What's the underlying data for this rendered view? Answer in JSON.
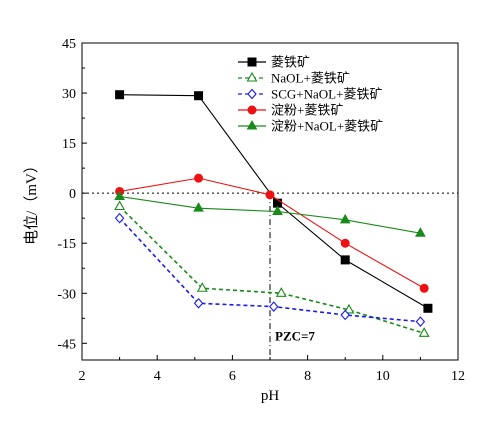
{
  "chart_data": {
    "type": "line",
    "xlabel": "pH",
    "ylabel": "电位/（mV）",
    "xlim": [
      2,
      12
    ],
    "ylim": [
      -50,
      45
    ],
    "xticks": [
      2,
      4,
      6,
      8,
      10,
      12
    ],
    "yticks": [
      -45,
      -30,
      -15,
      0,
      15,
      30,
      45
    ],
    "legend_position": "top-right",
    "reference_lines": [
      {
        "axis": "y",
        "value": 0,
        "style": "dotted"
      },
      {
        "axis": "x",
        "value": 7,
        "style": "dash-dot"
      }
    ],
    "annotation": {
      "text": "PZC=7",
      "x": 7,
      "y": -43
    },
    "series": [
      {
        "name": "菱铁矿",
        "color": "#000000",
        "marker": "square-filled",
        "dash": "solid",
        "x": [
          3.0,
          5.1,
          7.2,
          9.0,
          11.2
        ],
        "y": [
          29.5,
          29.2,
          -3.0,
          -20.0,
          -34.5
        ]
      },
      {
        "name": "NaOL+菱铁矿",
        "color": "#1a8a1a",
        "marker": "triangle-open",
        "dash": "dashed",
        "x": [
          3.0,
          5.2,
          7.3,
          9.1,
          11.1
        ],
        "y": [
          -4.0,
          -28.5,
          -30.0,
          -35.0,
          -42.0
        ]
      },
      {
        "name": "SCG+NaOL+菱铁矿",
        "color": "#1a1aee",
        "marker": "diamond-open",
        "dash": "dashed",
        "x": [
          3.0,
          5.1,
          7.1,
          9.0,
          11.0
        ],
        "y": [
          -7.5,
          -33.0,
          -34.0,
          -36.5,
          -38.5
        ]
      },
      {
        "name": "淀粉+菱铁矿",
        "color": "#ee1111",
        "marker": "circle-filled",
        "dash": "solid",
        "x": [
          3.0,
          5.1,
          7.0,
          9.0,
          11.1
        ],
        "y": [
          0.5,
          4.5,
          -0.5,
          -15.0,
          -28.5
        ]
      },
      {
        "name": "淀粉+NaOL+菱铁矿",
        "color": "#1a8a1a",
        "marker": "triangle-filled",
        "dash": "solid",
        "x": [
          3.0,
          5.1,
          7.2,
          9.0,
          11.0
        ],
        "y": [
          -1.0,
          -4.5,
          -5.5,
          -8.0,
          -12.0
        ]
      }
    ]
  }
}
